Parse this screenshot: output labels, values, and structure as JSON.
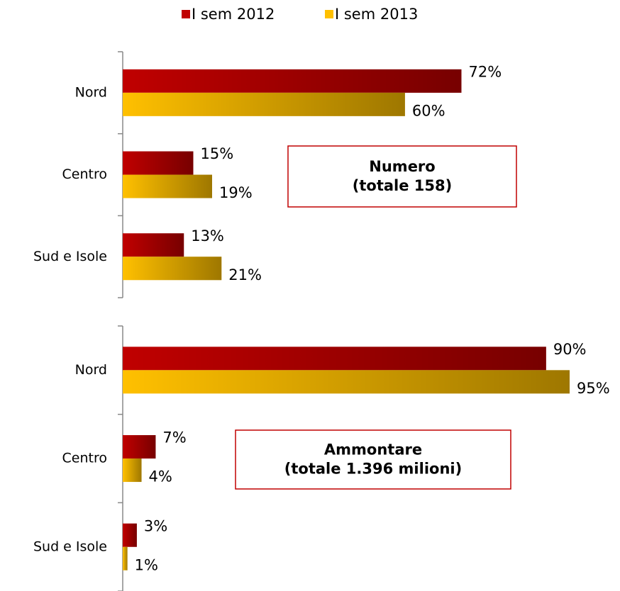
{
  "chart_data": [
    {
      "type": "bar",
      "orientation": "horizontal",
      "categories": [
        "Nord",
        "Centro",
        "Sud e Isole"
      ],
      "series": [
        {
          "name": "I sem 2012",
          "color": "#c00000",
          "values": [
            72,
            15,
            13
          ],
          "value_labels": [
            "72%",
            "15%",
            "13%"
          ]
        },
        {
          "name": "I sem 2013",
          "color": "#ffc000",
          "values": [
            60,
            19,
            21
          ],
          "value_labels": [
            "60%",
            "19%",
            "21%"
          ]
        }
      ],
      "annotation": [
        "Numero",
        "(totale 158)"
      ]
    },
    {
      "type": "bar",
      "orientation": "horizontal",
      "categories": [
        "Nord",
        "Centro",
        "Sud e Isole"
      ],
      "series": [
        {
          "color": "#c00000",
          "values": [
            90,
            7,
            3
          ],
          "value_labels": [
            "90%",
            "7%",
            "3%"
          ]
        },
        {
          "color": "#ffc000",
          "values": [
            95,
            4,
            1
          ],
          "value_labels": [
            "95%",
            "4%",
            "1%"
          ]
        }
      ],
      "annotation": [
        "Ammontare",
        "(totale 1.396 milioni)"
      ]
    }
  ]
}
